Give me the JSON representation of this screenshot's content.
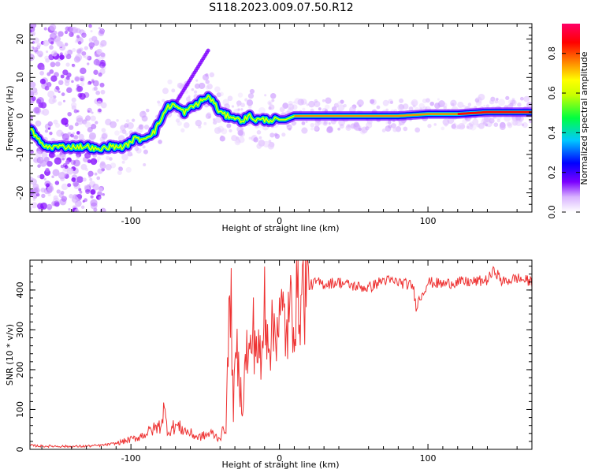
{
  "figure_title": "S118.2023.009.07.50.R12",
  "chart_data": [
    {
      "type": "heatmap",
      "xlabel": "Height of straight line (km)",
      "ylabel": "Frequency (Hz)",
      "xlim": [
        -168,
        170
      ],
      "ylim": [
        -25,
        24
      ],
      "x_ticks": [
        -100,
        0,
        100
      ],
      "x_tick_labels": [
        "-100",
        "0",
        "100"
      ],
      "y_ticks": [
        -20,
        -10,
        0,
        10,
        20
      ],
      "y_tick_labels": [
        "-20",
        "-10",
        "0",
        "10",
        "20"
      ],
      "ridge": {
        "x": [
          -168,
          -163,
          -158,
          -152,
          -146,
          -140,
          -134,
          -128,
          -122,
          -116,
          -110,
          -104,
          -98,
          -92,
          -88,
          -84,
          -80,
          -76,
          -72,
          -68,
          -64,
          -60,
          -56,
          -52,
          -48,
          -45,
          -42,
          -40,
          -36,
          -32,
          -28,
          -24,
          -20,
          -16,
          -12,
          -8,
          -4,
          0,
          4,
          10,
          20,
          40,
          60,
          80,
          100,
          120,
          140,
          160,
          170
        ],
        "y": [
          -3,
          -6,
          -8,
          -8,
          -8,
          -8,
          -8,
          -8,
          -9,
          -8,
          -8,
          -8,
          -6,
          -6,
          -5,
          -4,
          -1,
          2,
          3,
          2,
          1,
          2,
          3,
          4,
          5,
          4,
          2,
          1,
          0,
          0,
          -1,
          -1,
          0,
          -1,
          -1,
          -1,
          -1,
          -1,
          -1,
          0,
          0,
          0,
          0,
          0,
          0.5,
          0.5,
          1,
          1,
          1
        ]
      },
      "colorbar": {
        "label": "Normalized spectral amplitude",
        "range": [
          0,
          0.95
        ],
        "ticks": [
          0.0,
          0.2,
          0.4,
          0.6,
          0.8
        ],
        "tick_labels": [
          "0.0",
          "0.2",
          "0.4",
          "0.6",
          "0.8"
        ],
        "colors": [
          "#ffffff",
          "#7b00ff",
          "#0000ff",
          "#00c8ff",
          "#00ff00",
          "#ffff00",
          "#ff8000",
          "#ff0000",
          "#ff0066"
        ]
      }
    },
    {
      "type": "line",
      "xlabel": "Height of straight line (km)",
      "ylabel": "SNR (10 * v/v)",
      "xlim": [
        -168,
        170
      ],
      "ylim": [
        0,
        475
      ],
      "x_ticks": [
        -100,
        0,
        100
      ],
      "x_tick_labels": [
        "-100",
        "0",
        "100"
      ],
      "y_ticks": [
        0,
        100,
        200,
        300,
        400
      ],
      "y_tick_labels": [
        "0",
        "100",
        "200",
        "300",
        "400"
      ],
      "series": [
        {
          "name": "SNR",
          "color": "#ee3333",
          "x": [
            -168,
            -160,
            -150,
            -140,
            -130,
            -120,
            -110,
            -100,
            -95,
            -90,
            -85,
            -80,
            -78,
            -75,
            -70,
            -65,
            -60,
            -55,
            -50,
            -45,
            -42,
            -40,
            -36,
            -33,
            -31,
            -29,
            -27,
            -25,
            -22,
            -20,
            -18,
            -15,
            -12,
            -10,
            -8,
            -5,
            -2,
            0,
            3,
            5,
            8,
            12,
            15,
            20,
            25,
            30,
            40,
            50,
            60,
            70,
            80,
            90,
            92,
            100,
            110,
            120,
            130,
            140,
            145,
            150,
            160,
            170
          ],
          "y": [
            10,
            8,
            8,
            7,
            8,
            10,
            15,
            25,
            30,
            40,
            50,
            60,
            100,
            45,
            60,
            50,
            40,
            30,
            35,
            40,
            30,
            30,
            60,
            420,
            100,
            250,
            180,
            110,
            250,
            220,
            300,
            260,
            200,
            380,
            310,
            280,
            330,
            320,
            330,
            290,
            350,
            380,
            390,
            410,
            420,
            415,
            420,
            410,
            405,
            425,
            420,
            410,
            360,
            420,
            415,
            420,
            420,
            425,
            450,
            420,
            430,
            420
          ]
        }
      ]
    }
  ]
}
